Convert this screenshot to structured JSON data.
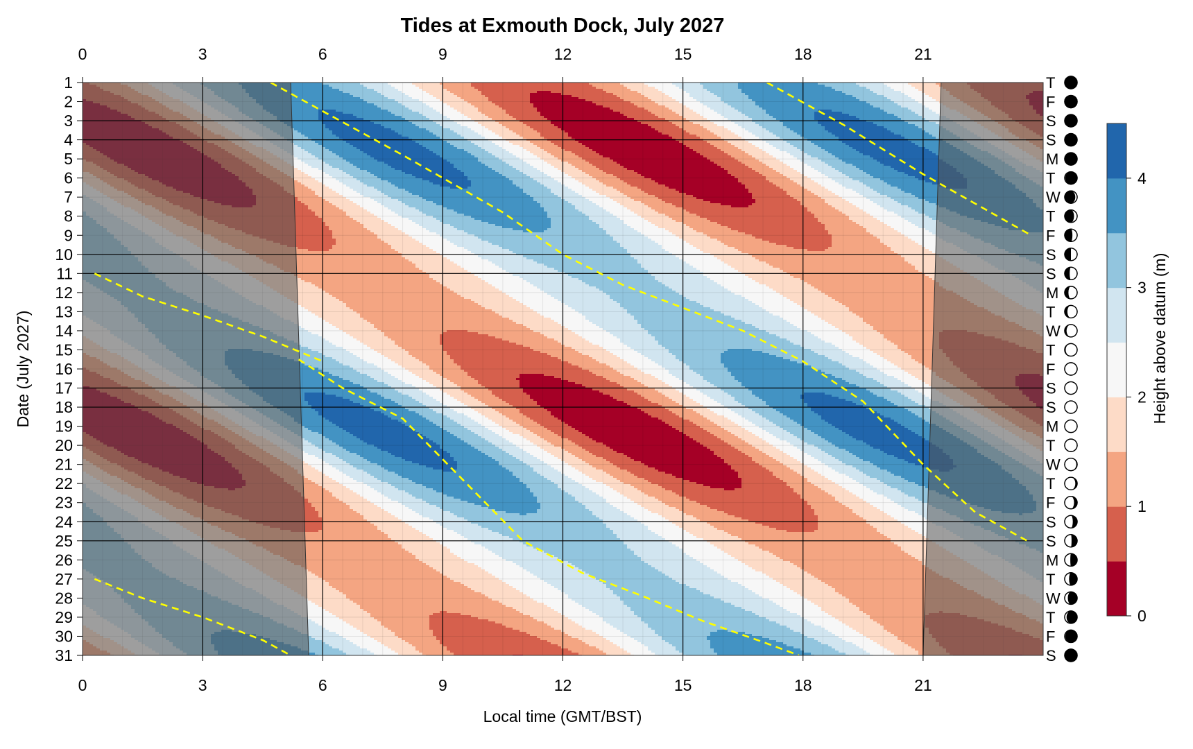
{
  "chart_data": {
    "type": "heatmap",
    "title": "Tides at Exmouth Dock, July 2027",
    "xlabel": "Local time (GMT/BST)",
    "ylabel": "Date (July 2027)",
    "colorbar_label": "Height above datum (m)",
    "xlim": [
      0,
      24
    ],
    "ylim": [
      1,
      31
    ],
    "x_ticks": [
      "0",
      "3",
      "6",
      "9",
      "12",
      "15",
      "18",
      "21"
    ],
    "y_ticks": [
      "1",
      "2",
      "3",
      "4",
      "5",
      "6",
      "7",
      "8",
      "9",
      "10",
      "11",
      "12",
      "13",
      "14",
      "15",
      "16",
      "17",
      "18",
      "19",
      "20",
      "21",
      "22",
      "23",
      "24",
      "25",
      "26",
      "27",
      "28",
      "29",
      "30",
      "31"
    ],
    "colorbar_ticks": [
      "0",
      "1",
      "2",
      "3",
      "4"
    ],
    "levels": [
      0,
      0.5,
      1.0,
      1.5,
      2.0,
      2.5,
      3.0,
      3.5,
      4.0,
      4.5
    ],
    "level_colors": [
      "#a50026",
      "#d6604d",
      "#f4a582",
      "#fddbc7",
      "#f7f7f7",
      "#d1e5f0",
      "#92c5de",
      "#4393c3",
      "#2166ac"
    ],
    "weekdays": [
      "T",
      "F",
      "S",
      "S",
      "M",
      "T",
      "W",
      "T",
      "F",
      "S",
      "S",
      "M",
      "T",
      "W",
      "T",
      "F",
      "S",
      "S",
      "M",
      "T",
      "W",
      "T",
      "F",
      "S",
      "S",
      "M",
      "T",
      "W",
      "T",
      "F",
      "S"
    ],
    "moon_illumination": [
      0.98,
      1.0,
      1.0,
      1.0,
      1.0,
      0.95,
      0.85,
      0.75,
      0.62,
      0.5,
      0.4,
      0.3,
      0.22,
      0.15,
      0.08,
      0.03,
      0.0,
      0.0,
      0.0,
      0.02,
      0.07,
      0.15,
      0.25,
      0.35,
      0.45,
      0.55,
      0.65,
      0.75,
      0.85,
      0.95,
      1.0
    ],
    "moon_phase_side": [
      "right",
      "right",
      "right",
      "right",
      "right",
      "right",
      "left",
      "left",
      "left",
      "left",
      "left",
      "left",
      "left",
      "left",
      "left",
      "left",
      "left",
      "left",
      "left",
      "right",
      "right",
      "right",
      "right",
      "right",
      "right",
      "right",
      "right",
      "right",
      "right",
      "right",
      "right"
    ],
    "darkness": {
      "sunrise_day1": 5.2,
      "sunrise_day31": 5.65,
      "sunset_day1": 21.45,
      "sunset_day31": 21.0
    },
    "weekend_lines": [
      3,
      4,
      10,
      11,
      17,
      18,
      24,
      25
    ],
    "high_water_tracks": [
      {
        "name": "",
        "x": [
          4.7,
          6.0,
          8.0,
          10.5,
          12.0,
          13.5,
          15.0,
          16.5,
          18.0,
          19.5,
          21.0,
          22.3,
          23.6
        ],
        "y": [
          1,
          2.5,
          4.8,
          7.8,
          10,
          11.6,
          12.8,
          14,
          15.6,
          17.7,
          21.0,
          23.5,
          25
        ]
      },
      {
        "name": "",
        "x": [
          17.1,
          19.0,
          21.0,
          23.7
        ],
        "y": [
          1,
          3.2,
          5.8,
          9
        ]
      },
      {
        "name": "",
        "x": [
          0.3,
          1.5,
          3.0,
          4.5,
          6.0
        ],
        "y": [
          11,
          12.2,
          13.2,
          14.3,
          15.6
        ]
      },
      {
        "name": "",
        "x": [
          5.4,
          6.5,
          8.0,
          9.5,
          11.0,
          12.5,
          14.0,
          15.5,
          17.0,
          17.9
        ],
        "y": [
          15.5,
          17,
          18.6,
          21.8,
          25.0,
          26.7,
          27.9,
          29.2,
          30.3,
          31
        ]
      },
      {
        "name": "",
        "x": [
          0.3,
          1.5,
          3.0,
          4.5,
          5.2
        ],
        "y": [
          27,
          28.0,
          29.0,
          30.2,
          31
        ]
      }
    ]
  }
}
